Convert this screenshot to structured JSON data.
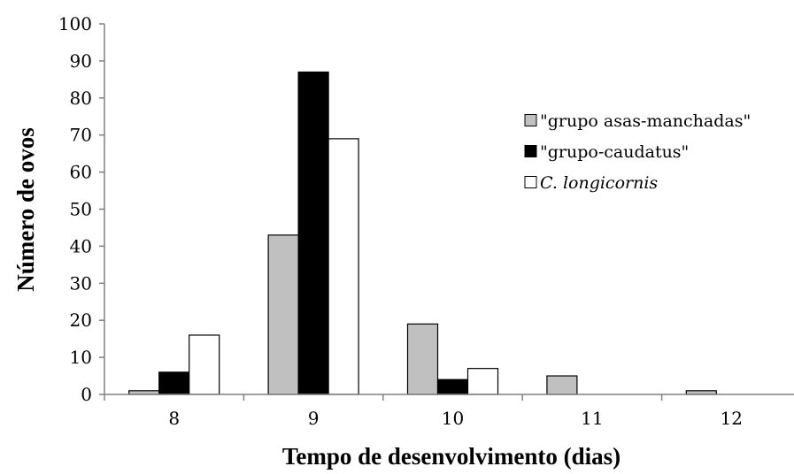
{
  "chart_data": {
    "type": "bar",
    "xlabel": "Tempo de desenvolvimento (dias)",
    "ylabel": "Número de ovos",
    "categories": [
      "8",
      "9",
      "10",
      "11",
      "12"
    ],
    "ylim": [
      0,
      100
    ],
    "yticks": [
      0,
      10,
      20,
      30,
      40,
      50,
      60,
      70,
      80,
      90,
      100
    ],
    "grid": false,
    "legend_position": "right",
    "series": [
      {
        "name": "\"grupo asas-manchadas\"",
        "color": "#c0c0c0",
        "italic": false,
        "values": [
          1,
          43,
          19,
          5,
          1
        ]
      },
      {
        "name": "\"grupo-caudatus\"",
        "color": "#000000",
        "italic": false,
        "values": [
          6,
          87,
          4,
          0,
          0
        ]
      },
      {
        "name": "C. longicornis",
        "color": "#ffffff",
        "italic": true,
        "values": [
          16,
          69,
          7,
          0,
          0
        ]
      }
    ]
  }
}
